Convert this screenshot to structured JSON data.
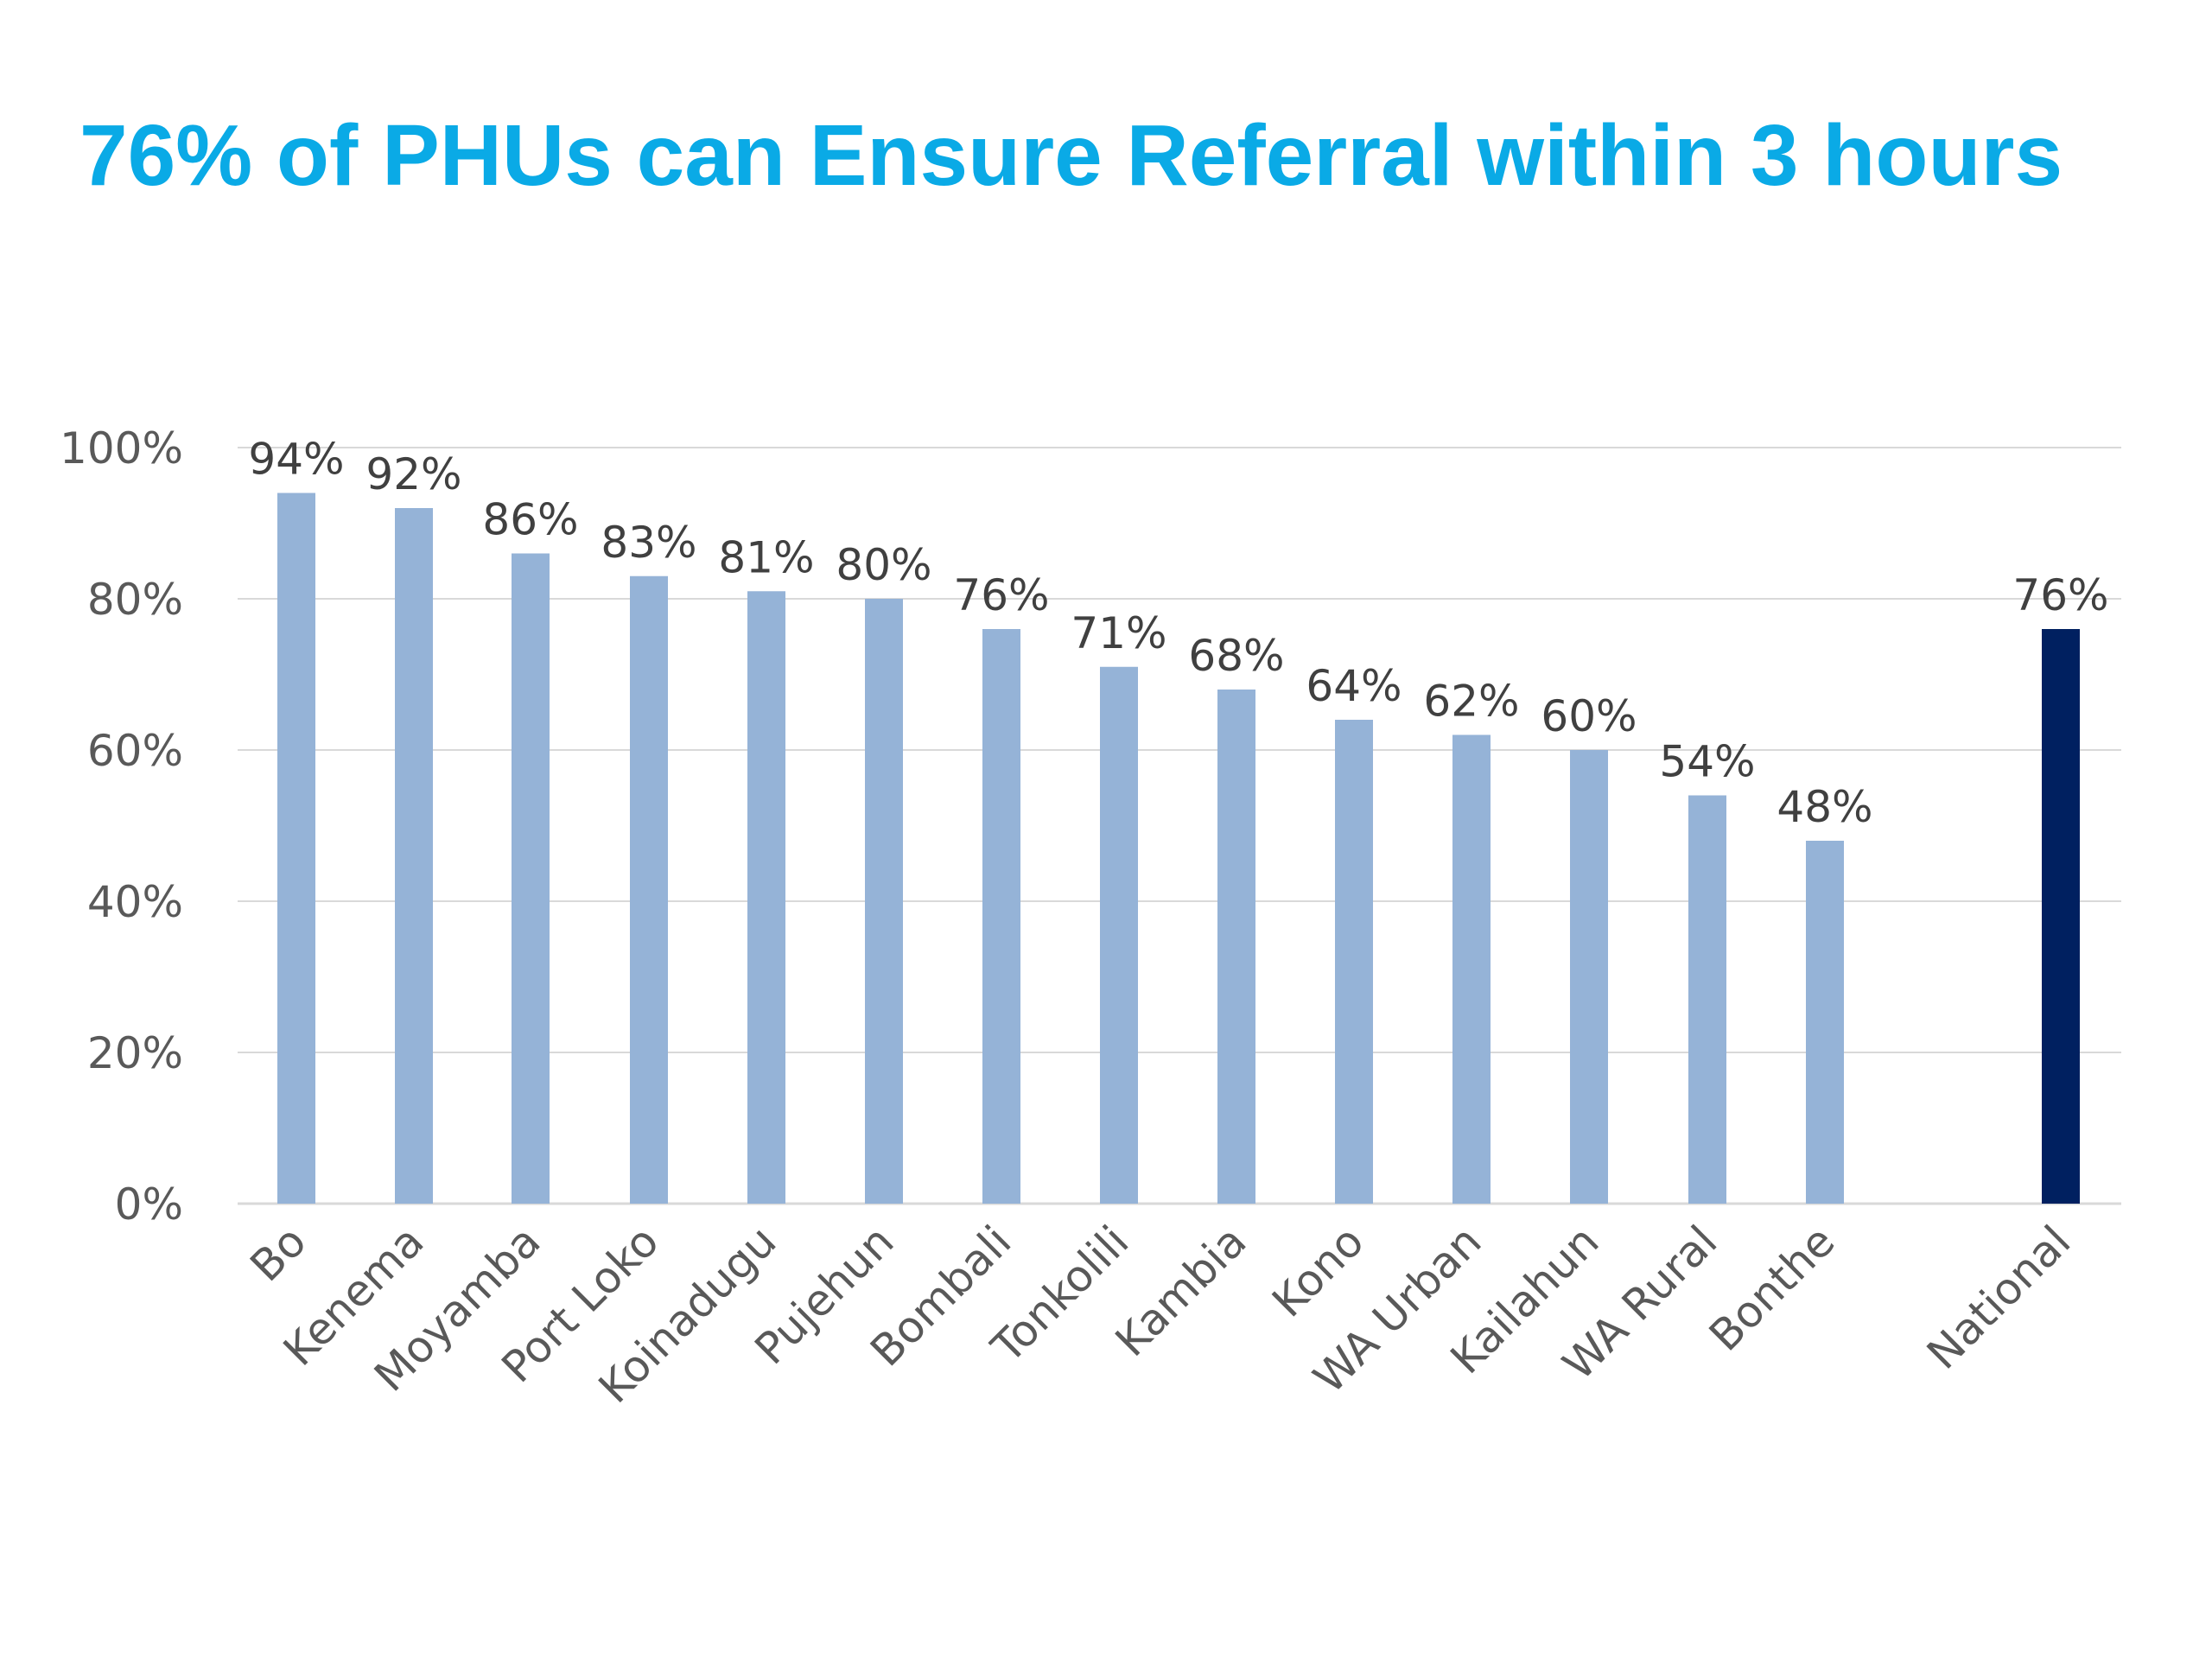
{
  "slide": {
    "title": "76% of PHUs can Ensure Referral within 3 hours"
  },
  "colors": {
    "title": "#0aaae6",
    "district_bar": "#95b3d7",
    "national_bar": "#002060",
    "gridline": "#d9d9d9",
    "tick_text": "#595959",
    "data_label_text": "#404040"
  },
  "chart_data": {
    "type": "bar",
    "title": "76% of PHUs can Ensure Referral within 3 hours",
    "xlabel": "",
    "ylabel": "",
    "ylim": [
      0,
      100
    ],
    "yticks": [
      "0%",
      "20%",
      "40%",
      "60%",
      "80%",
      "100%"
    ],
    "grid": true,
    "legend": "none",
    "categories": [
      "Bo",
      "Kenema",
      "Moyamba",
      "Port Loko",
      "Koinadugu",
      "Pujehun",
      "Bombali",
      "Tonkolili",
      "Kambia",
      "Kono",
      "WA Urban",
      "Kailahun",
      "WA Rural",
      "Bonthe",
      "National"
    ],
    "values": [
      94,
      92,
      86,
      83,
      81,
      80,
      76,
      71,
      68,
      64,
      62,
      60,
      54,
      48,
      76
    ],
    "data_labels": [
      "94%",
      "92%",
      "86%",
      "83%",
      "81%",
      "80%",
      "76%",
      "71%",
      "68%",
      "64%",
      "62%",
      "60%",
      "54%",
      "48%",
      "76%"
    ],
    "highlight": "National"
  }
}
